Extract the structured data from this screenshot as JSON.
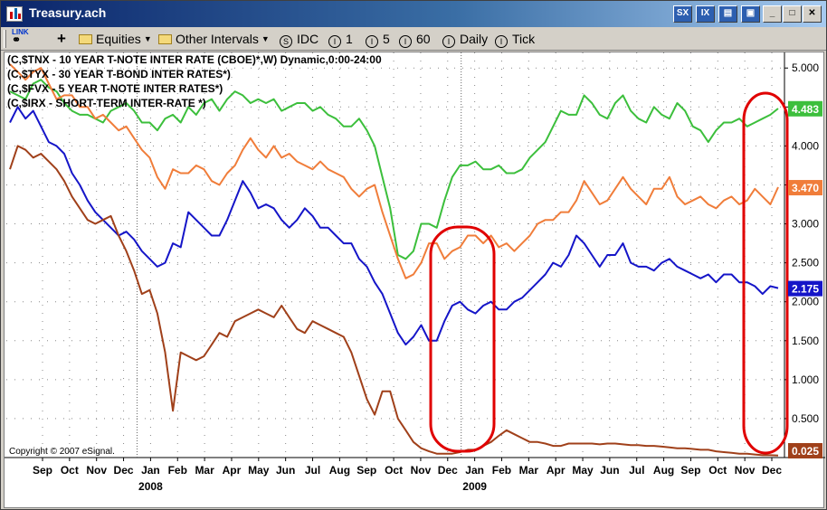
{
  "window": {
    "title": "Treasury.ach"
  },
  "titlebar_buttons": {
    "b1": "SX",
    "b2": "IX",
    "minimize": "_",
    "maximize": "□",
    "close": "✕"
  },
  "toolbar": {
    "link_label": "LINK",
    "add": "+",
    "equities": "Equities",
    "other_intervals": "Other Intervals",
    "idc": "IDC",
    "i1": "1",
    "i5": "5",
    "i60": "60",
    "daily": "Daily",
    "tick": "Tick"
  },
  "legend": [
    "(C,$TNX - 10 YEAR T-NOTE INTER RATE (CBOE)*,W) Dynamic,0:00-24:00",
    "(C,$TYX - 30 YEAR T-BOND INTER RATES*)",
    "(C,$FVX - 5 YEAR T-NOTE INTER RATES*)",
    "(C,$IRX - SHORT-TERM INTER-RATE *)"
  ],
  "copyright": "Copyright © 2007 eSignal.",
  "colors": {
    "green": "#3cbf3c",
    "orange": "#f07d3a",
    "blue": "#1515c8",
    "brown": "#a0401a",
    "highlight": "#e00000"
  },
  "chart_data": {
    "type": "line",
    "x_ticks": [
      "Sep",
      "Oct",
      "Nov",
      "Dec",
      "Jan",
      "Feb",
      "Mar",
      "Apr",
      "May",
      "Jun",
      "Jul",
      "Aug",
      "Sep",
      "Oct",
      "Nov",
      "Dec",
      "Jan",
      "Feb",
      "Mar",
      "Apr",
      "May",
      "Jun",
      "Jul",
      "Aug",
      "Sep",
      "Oct",
      "Nov",
      "Dec"
    ],
    "year_labels": [
      {
        "label": "2008",
        "index": 4
      },
      {
        "label": "2009",
        "index": 16
      }
    ],
    "y_ticks": [
      "5.000",
      "4.500",
      "4.000",
      "3.500",
      "3.000",
      "2.500",
      "2.000",
      "1.500",
      "1.000",
      "0.500"
    ],
    "ylim": [
      0,
      5.2
    ],
    "last_values": [
      {
        "label": "4.483",
        "color": "#3cbf3c"
      },
      {
        "label": "3.470",
        "color": "#f07d3a"
      },
      {
        "label": "2.175",
        "color": "#1515c8"
      },
      {
        "label": "0.025",
        "color": "#a0401a"
      }
    ],
    "series": [
      {
        "color": "#3cbf3c",
        "values": [
          4.7,
          4.65,
          4.6,
          4.8,
          4.85,
          4.75,
          4.7,
          4.55,
          4.45,
          4.4,
          4.4,
          4.35,
          4.3,
          4.45,
          4.5,
          4.55,
          4.45,
          4.3,
          4.3,
          4.2,
          4.35,
          4.4,
          4.3,
          4.5,
          4.4,
          4.55,
          4.6,
          4.45,
          4.6,
          4.7,
          4.65,
          4.55,
          4.6,
          4.55,
          4.6,
          4.45,
          4.5,
          4.55,
          4.55,
          4.45,
          4.5,
          4.4,
          4.35,
          4.25,
          4.25,
          4.35,
          4.2,
          4.0,
          3.6,
          3.2,
          2.6,
          2.55,
          2.65,
          3.0,
          3.0,
          2.95,
          3.3,
          3.6,
          3.75,
          3.75,
          3.8,
          3.7,
          3.7,
          3.75,
          3.65,
          3.65,
          3.7,
          3.85,
          3.95,
          4.05,
          4.25,
          4.45,
          4.4,
          4.4,
          4.65,
          4.55,
          4.4,
          4.35,
          4.55,
          4.65,
          4.45,
          4.35,
          4.3,
          4.5,
          4.4,
          4.35,
          4.55,
          4.45,
          4.25,
          4.2,
          4.05,
          4.2,
          4.3,
          4.3,
          4.35,
          4.25,
          4.3,
          4.35,
          4.4,
          4.48
        ]
      },
      {
        "color": "#f07d3a",
        "values": [
          5.05,
          4.95,
          4.85,
          4.95,
          5.0,
          4.8,
          4.6,
          4.65,
          4.65,
          4.5,
          4.5,
          4.35,
          4.4,
          4.3,
          4.2,
          4.25,
          4.1,
          3.95,
          3.85,
          3.6,
          3.45,
          3.7,
          3.65,
          3.65,
          3.75,
          3.7,
          3.55,
          3.5,
          3.65,
          3.75,
          3.95,
          4.1,
          3.95,
          3.85,
          4.0,
          3.85,
          3.9,
          3.8,
          3.75,
          3.7,
          3.8,
          3.7,
          3.65,
          3.6,
          3.45,
          3.35,
          3.45,
          3.5,
          3.15,
          2.85,
          2.55,
          2.3,
          2.35,
          2.5,
          2.75,
          2.75,
          2.55,
          2.65,
          2.7,
          2.85,
          2.85,
          2.75,
          2.85,
          2.7,
          2.75,
          2.65,
          2.75,
          2.85,
          3.0,
          3.05,
          3.05,
          3.15,
          3.15,
          3.3,
          3.55,
          3.4,
          3.25,
          3.3,
          3.45,
          3.6,
          3.45,
          3.35,
          3.25,
          3.45,
          3.45,
          3.6,
          3.35,
          3.25,
          3.3,
          3.35,
          3.25,
          3.2,
          3.3,
          3.35,
          3.25,
          3.3,
          3.45,
          3.35,
          3.25,
          3.47
        ]
      },
      {
        "color": "#1515c8",
        "values": [
          4.3,
          4.5,
          4.35,
          4.45,
          4.25,
          4.05,
          4.0,
          3.9,
          3.65,
          3.5,
          3.3,
          3.15,
          3.05,
          2.95,
          2.85,
          2.9,
          2.8,
          2.65,
          2.55,
          2.45,
          2.5,
          2.75,
          2.7,
          3.15,
          3.05,
          2.95,
          2.85,
          2.85,
          3.05,
          3.3,
          3.55,
          3.4,
          3.2,
          3.25,
          3.2,
          3.05,
          2.95,
          3.05,
          3.2,
          3.1,
          2.95,
          2.95,
          2.85,
          2.75,
          2.75,
          2.55,
          2.45,
          2.25,
          2.1,
          1.85,
          1.6,
          1.45,
          1.55,
          1.7,
          1.5,
          1.5,
          1.75,
          1.95,
          2.0,
          1.9,
          1.85,
          1.95,
          2.0,
          1.9,
          1.9,
          2.0,
          2.05,
          2.15,
          2.25,
          2.35,
          2.5,
          2.45,
          2.6,
          2.85,
          2.75,
          2.6,
          2.45,
          2.6,
          2.6,
          2.75,
          2.5,
          2.45,
          2.45,
          2.4,
          2.5,
          2.55,
          2.45,
          2.4,
          2.35,
          2.3,
          2.35,
          2.25,
          2.35,
          2.35,
          2.25,
          2.25,
          2.2,
          2.1,
          2.2,
          2.175
        ]
      },
      {
        "color": "#a0401a",
        "values": [
          3.7,
          4.0,
          3.95,
          3.85,
          3.9,
          3.8,
          3.7,
          3.55,
          3.35,
          3.2,
          3.05,
          3.0,
          3.05,
          3.1,
          2.85,
          2.65,
          2.4,
          2.1,
          2.15,
          1.85,
          1.35,
          0.6,
          1.35,
          1.3,
          1.25,
          1.3,
          1.45,
          1.6,
          1.55,
          1.75,
          1.8,
          1.85,
          1.9,
          1.85,
          1.8,
          1.95,
          1.8,
          1.65,
          1.6,
          1.75,
          1.7,
          1.65,
          1.6,
          1.55,
          1.35,
          1.05,
          0.75,
          0.55,
          0.85,
          0.85,
          0.5,
          0.35,
          0.2,
          0.12,
          0.08,
          0.05,
          0.05,
          0.05,
          0.07,
          0.1,
          0.1,
          0.15,
          0.2,
          0.28,
          0.35,
          0.3,
          0.25,
          0.2,
          0.2,
          0.18,
          0.15,
          0.15,
          0.18,
          0.18,
          0.18,
          0.18,
          0.17,
          0.18,
          0.18,
          0.17,
          0.16,
          0.16,
          0.15,
          0.15,
          0.14,
          0.13,
          0.12,
          0.12,
          0.11,
          0.1,
          0.1,
          0.08,
          0.07,
          0.06,
          0.05,
          0.05,
          0.04,
          0.03,
          0.03,
          0.025
        ]
      }
    ]
  }
}
